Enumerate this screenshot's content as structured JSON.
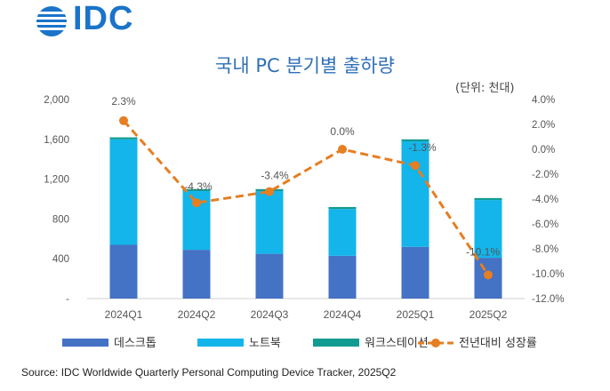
{
  "header": {
    "logo_text": "IDC"
  },
  "unit_label": "(단위: 천대)",
  "source": "Source: IDC Worldwide Quarterly Personal Computing Device Tracker, 2025Q2",
  "colors": {
    "desktop": "#4472c4",
    "notebook": "#13b5ea",
    "workstation": "#129b91",
    "growth": "#e67e22",
    "title": "#2f6fb7",
    "logo": "#1a74c9"
  },
  "chart_data": {
    "type": "bar",
    "title": "국내 PC 분기별 출하량",
    "categories": [
      "2024Q1",
      "2024Q2",
      "2024Q3",
      "2024Q4",
      "2025Q1",
      "2025Q2"
    ],
    "series": [
      {
        "name": "데스크톱",
        "kind": "stacked-bar",
        "values": [
          540,
          490,
          450,
          430,
          520,
          410
        ]
      },
      {
        "name": "노트북",
        "kind": "stacked-bar",
        "values": [
          1060,
          590,
          630,
          470,
          1060,
          580
        ]
      },
      {
        "name": "워크스테이션",
        "kind": "stacked-bar",
        "values": [
          20,
          20,
          20,
          20,
          20,
          20
        ]
      },
      {
        "name": "전년대비 성장률",
        "kind": "line",
        "axis": "right",
        "values": [
          2.3,
          -4.3,
          -3.4,
          0.0,
          -1.3,
          -10.1
        ]
      }
    ],
    "data_labels": [
      "2.3%",
      "-4.3%",
      "-3.4%",
      "0.0%",
      "-1.3%",
      "-10.1%"
    ],
    "y_left": {
      "ylim": [
        0,
        2000
      ],
      "ticks": [
        "-",
        "400",
        "800",
        "1,200",
        "1,600",
        "2,000"
      ]
    },
    "y_right": {
      "ylim": [
        -12,
        4
      ],
      "ticks": [
        "-12.0%",
        "-10.0%",
        "-8.0%",
        "-6.0%",
        "-4.0%",
        "-2.0%",
        "0.0%",
        "2.0%",
        "4.0%"
      ]
    },
    "grid": false,
    "legend_position": "bottom"
  }
}
